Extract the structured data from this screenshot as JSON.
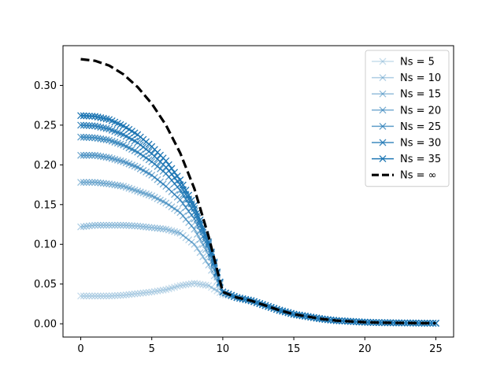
{
  "chart_data": {
    "type": "line",
    "title": "",
    "xlabel": "",
    "ylabel": "",
    "xlim": [
      -1.25,
      26.25
    ],
    "ylim": [
      -0.0167,
      0.35
    ],
    "x_ticks": [
      0,
      5,
      10,
      15,
      20,
      25
    ],
    "x_tick_labels": [
      "0",
      "5",
      "10",
      "15",
      "20",
      "25"
    ],
    "y_ticks": [
      0.0,
      0.05,
      0.1,
      0.15,
      0.2,
      0.25,
      0.3
    ],
    "y_tick_labels": [
      "0.00",
      "0.05",
      "0.10",
      "0.15",
      "0.20",
      "0.25",
      "0.30"
    ],
    "grid": false,
    "legend_position": "top-right",
    "x": [
      0,
      1,
      2,
      3,
      4,
      5,
      6,
      7,
      8,
      9,
      10,
      11,
      12,
      13,
      14,
      15,
      16,
      17,
      18,
      19,
      20,
      21,
      22,
      23,
      24,
      25
    ],
    "series": [
      {
        "name": "Ns = 5",
        "color": "#1f77b4",
        "opacity": 0.25,
        "marker": "x",
        "values": [
          0.035,
          0.035,
          0.035,
          0.036,
          0.038,
          0.04,
          0.043,
          0.048,
          0.051,
          0.048,
          0.037,
          0.033,
          0.029,
          0.023,
          0.017,
          0.012,
          0.009,
          0.006,
          0.004,
          0.003,
          0.002,
          0.0015,
          0.0012,
          0.001,
          0.0008,
          0.0007
        ]
      },
      {
        "name": "Ns = 10",
        "color": "#1f77b4",
        "opacity": 0.36,
        "marker": "x",
        "values": [
          0.122,
          0.124,
          0.124,
          0.124,
          0.123,
          0.121,
          0.119,
          0.114,
          0.1,
          0.074,
          0.04,
          0.033,
          0.029,
          0.023,
          0.017,
          0.012,
          0.009,
          0.006,
          0.004,
          0.003,
          0.002,
          0.0015,
          0.0012,
          0.001,
          0.0008,
          0.0007
        ]
      },
      {
        "name": "Ns = 15",
        "color": "#1f77b4",
        "opacity": 0.48,
        "marker": "x",
        "values": [
          0.178,
          0.178,
          0.176,
          0.173,
          0.167,
          0.161,
          0.152,
          0.14,
          0.119,
          0.087,
          0.04,
          0.033,
          0.029,
          0.023,
          0.017,
          0.012,
          0.009,
          0.006,
          0.004,
          0.003,
          0.002,
          0.0015,
          0.0012,
          0.001,
          0.0008,
          0.0007
        ]
      },
      {
        "name": "Ns = 20",
        "color": "#1f77b4",
        "opacity": 0.6,
        "marker": "x",
        "values": [
          0.212,
          0.212,
          0.209,
          0.204,
          0.197,
          0.187,
          0.173,
          0.156,
          0.132,
          0.095,
          0.04,
          0.033,
          0.029,
          0.023,
          0.017,
          0.012,
          0.009,
          0.006,
          0.004,
          0.003,
          0.002,
          0.0015,
          0.0012,
          0.001,
          0.0008,
          0.0007
        ]
      },
      {
        "name": "Ns = 25",
        "color": "#1f77b4",
        "opacity": 0.72,
        "marker": "x",
        "values": [
          0.235,
          0.234,
          0.231,
          0.225,
          0.216,
          0.204,
          0.189,
          0.168,
          0.14,
          0.099,
          0.04,
          0.033,
          0.029,
          0.023,
          0.017,
          0.012,
          0.009,
          0.006,
          0.004,
          0.003,
          0.002,
          0.0015,
          0.0012,
          0.001,
          0.0008,
          0.0007
        ]
      },
      {
        "name": "Ns = 30",
        "color": "#1f77b4",
        "opacity": 0.86,
        "marker": "x",
        "values": [
          0.25,
          0.249,
          0.245,
          0.238,
          0.228,
          0.214,
          0.197,
          0.175,
          0.145,
          0.101,
          0.04,
          0.033,
          0.029,
          0.023,
          0.017,
          0.012,
          0.009,
          0.006,
          0.004,
          0.003,
          0.002,
          0.0015,
          0.0012,
          0.001,
          0.0008,
          0.0007
        ]
      },
      {
        "name": "Ns = 35",
        "color": "#1f77b4",
        "opacity": 1.0,
        "marker": "x",
        "values": [
          0.262,
          0.261,
          0.257,
          0.249,
          0.238,
          0.223,
          0.205,
          0.181,
          0.149,
          0.103,
          0.04,
          0.033,
          0.029,
          0.023,
          0.017,
          0.012,
          0.009,
          0.006,
          0.004,
          0.003,
          0.002,
          0.0015,
          0.0012,
          0.001,
          0.0008,
          0.0007
        ]
      },
      {
        "name": "Ns = ∞",
        "color": "#000000",
        "opacity": 1.0,
        "marker": "none",
        "dashed": true,
        "values": [
          0.333,
          0.331,
          0.325,
          0.314,
          0.298,
          0.277,
          0.25,
          0.215,
          0.17,
          0.11,
          0.04,
          0.033,
          0.029,
          0.023,
          0.017,
          0.012,
          0.009,
          0.006,
          0.004,
          0.003,
          0.002,
          0.0015,
          0.0012,
          0.001,
          0.0008,
          0.0007
        ]
      }
    ]
  }
}
